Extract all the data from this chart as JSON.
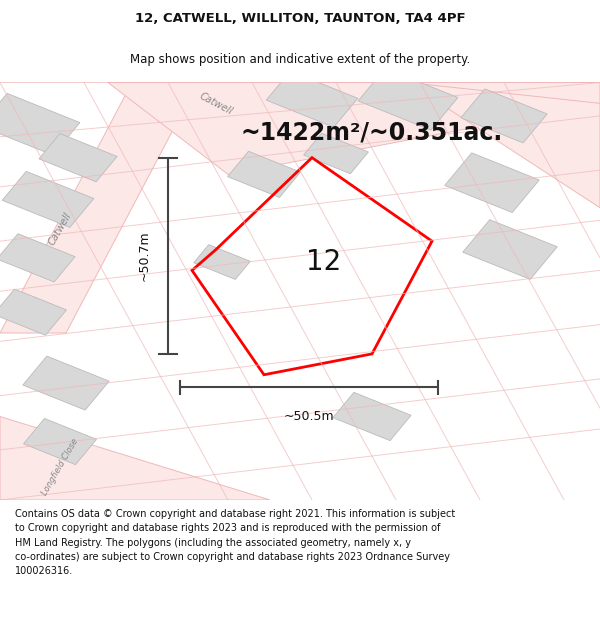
{
  "title": "12, CATWELL, WILLITON, TAUNTON, TA4 4PF",
  "subtitle": "Map shows position and indicative extent of the property.",
  "area_label": "~1422m²/~0.351ac.",
  "property_number": "12",
  "width_label": "~50.5m",
  "height_label": "~50.7m",
  "footer_lines": [
    "Contains OS data © Crown copyright and database right 2021. This information is subject",
    "to Crown copyright and database rights 2023 and is reproduced with the permission of",
    "HM Land Registry. The polygons (including the associated geometry, namely x, y",
    "co-ordinates) are subject to Crown copyright and database rights 2023 Ordnance Survey",
    "100026316."
  ],
  "bg_color": "#ffffff",
  "map_bg": "#ffffff",
  "property_polygon_color": "#ff0000",
  "road_line_color": "#f0b8b8",
  "road_fill_color": "#fde8e8",
  "building_fill_color": "#d8d8d8",
  "building_edge_color": "#bbbbbb",
  "street_label_catwell_top": "Catwell",
  "street_label_catwell_left": "Catwell",
  "street_label_longfield": "Longfield Close",
  "dimension_line_color": "#444444",
  "title_fontsize": 9.5,
  "subtitle_fontsize": 8.5,
  "area_fontsize": 17,
  "number_fontsize": 20,
  "dim_fontsize": 9,
  "street_fontsize": 7,
  "footer_fontsize": 7.0
}
